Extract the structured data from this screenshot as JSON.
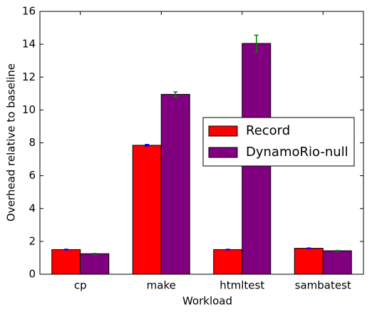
{
  "chart_data": {
    "type": "bar",
    "xlabel": "Workload",
    "ylabel": "Overhead relative to baseline",
    "categories": [
      "cp",
      "make",
      "htmltest",
      "sambatest"
    ],
    "series": [
      {
        "name": "Record",
        "color": "#ff0000",
        "error_color": "#0000ff",
        "values": [
          1.5,
          7.85,
          1.5,
          1.58
        ],
        "errors": [
          0.02,
          0.05,
          0.02,
          0.02
        ]
      },
      {
        "name": "DynamoRio-null",
        "color": "#800080",
        "error_color": "#008000",
        "values": [
          1.25,
          10.95,
          14.05,
          1.43
        ],
        "errors": [
          0.02,
          0.15,
          0.5,
          0.02
        ]
      }
    ],
    "ylim": [
      0,
      16
    ],
    "yticks": [
      0,
      2,
      4,
      6,
      8,
      10,
      12,
      14,
      16
    ],
    "legend": "center right"
  }
}
